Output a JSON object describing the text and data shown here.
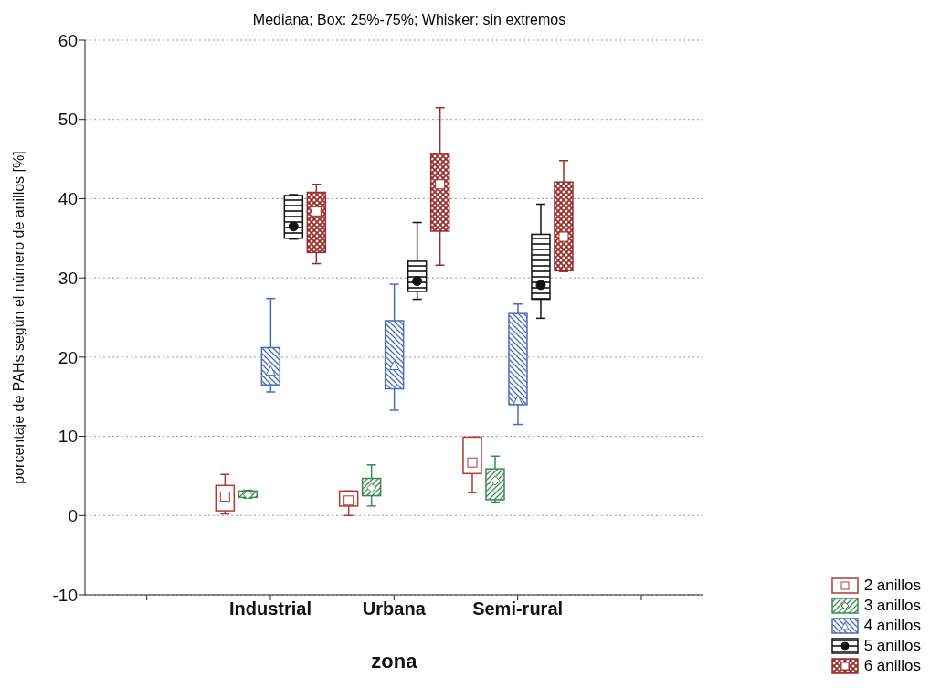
{
  "chart_data": {
    "type": "box",
    "title": "Mediana; Box: 25%-75%; Whisker: sin extremos",
    "xlabel": "zona",
    "ylabel": "porcentaje de PAHs según el número de anillos [%]",
    "categories": [
      null,
      "Industrial",
      "Urbana",
      "Semi-rural",
      null
    ],
    "ylim": [
      -10,
      60
    ],
    "yticks": [
      -10,
      0,
      10,
      20,
      30,
      40,
      50,
      60
    ],
    "grid": "y",
    "legend": "bottom right",
    "series": [
      {
        "name": "2 anillos",
        "color": "#b03a30",
        "marker": "square",
        "boxes": [
          null,
          {
            "low": 0.2,
            "q1": 0.6,
            "median": 2.4,
            "q3": 3.8,
            "high": 5.2
          },
          {
            "low": 0,
            "q1": 1.2,
            "median": 1.9,
            "q3": 3.1,
            "high": 3.1
          },
          {
            "low": 2.9,
            "q1": 5.3,
            "median": 6.7,
            "q3": 9.9,
            "high": 9.9
          },
          null
        ]
      },
      {
        "name": "3 anillos",
        "color": "#3a8a4f",
        "marker": "diamond",
        "boxes": [
          null,
          {
            "low": 2.2,
            "q1": 2.3,
            "median": 2.6,
            "q3": 3.1,
            "high": 3.2
          },
          {
            "low": 1.2,
            "q1": 2.5,
            "median": 3.5,
            "q3": 4.7,
            "high": 6.4
          },
          {
            "low": 1.7,
            "q1": 2.0,
            "median": 4.4,
            "q3": 5.9,
            "high": 7.5
          },
          null
        ]
      },
      {
        "name": "4 anillos",
        "color": "#4a6fb5",
        "marker": "triangle",
        "boxes": [
          null,
          {
            "low": 15.6,
            "q1": 16.5,
            "median": 18.3,
            "q3": 21.2,
            "high": 27.4
          },
          {
            "low": 13.3,
            "q1": 16.0,
            "median": 19.0,
            "q3": 24.6,
            "high": 29.2
          },
          {
            "low": 11.5,
            "q1": 14.0,
            "median": 14.6,
            "q3": 25.5,
            "high": 26.7
          },
          null
        ]
      },
      {
        "name": "5 anillos",
        "color": "#111111",
        "marker": "circle",
        "boxes": [
          null,
          {
            "low": 34.9,
            "q1": 35.0,
            "median": 36.5,
            "q3": 40.4,
            "high": 40.5
          },
          {
            "low": 27.3,
            "q1": 28.3,
            "median": 29.6,
            "q3": 32.1,
            "high": 37.0
          },
          {
            "low": 24.9,
            "q1": 27.3,
            "median": 29.1,
            "q3": 35.5,
            "high": 39.3
          },
          null
        ]
      },
      {
        "name": "6 anillos",
        "color": "#9b2d2d",
        "marker": "square",
        "boxes": [
          null,
          {
            "low": 31.8,
            "q1": 33.2,
            "median": 38.4,
            "q3": 40.8,
            "high": 41.8
          },
          {
            "low": 31.6,
            "q1": 35.9,
            "median": 41.8,
            "q3": 45.7,
            "high": 51.5
          },
          {
            "low": 30.8,
            "q1": 30.9,
            "median": 35.2,
            "q3": 42.1,
            "high": 44.8
          },
          null
        ]
      }
    ]
  }
}
